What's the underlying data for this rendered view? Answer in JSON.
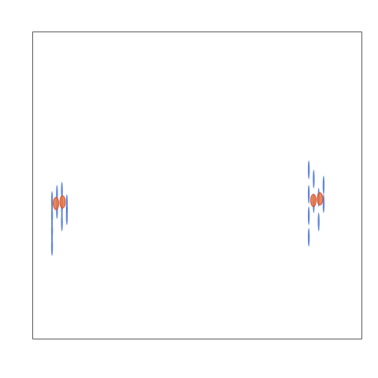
{
  "chart_data": {
    "type": "scatter",
    "xlim": [
      0,
      100
    ],
    "ylim": [
      0,
      100
    ],
    "tick_labels": false,
    "grid": false,
    "series": [
      {
        "color": "#2f5fd0",
        "marker": "streak",
        "x": [
          6,
          6,
          6,
          6,
          7.5,
          7.5,
          9,
          9,
          9,
          10.5,
          10.5,
          84,
          84,
          84,
          84,
          85.5,
          85.5,
          87,
          87,
          88.5,
          88.5
        ],
        "values": [
          30,
          35,
          40,
          45,
          42,
          47,
          38,
          43,
          48,
          40,
          44,
          33,
          40,
          47,
          55,
          44,
          52,
          38,
          46,
          44,
          50
        ]
      },
      {
        "color": "#e8743b",
        "marker": "ellipse",
        "x": [
          7.2,
          9.2,
          85.4,
          87.4
        ],
        "values": [
          44,
          44.5,
          45,
          45.5
        ]
      }
    ]
  }
}
